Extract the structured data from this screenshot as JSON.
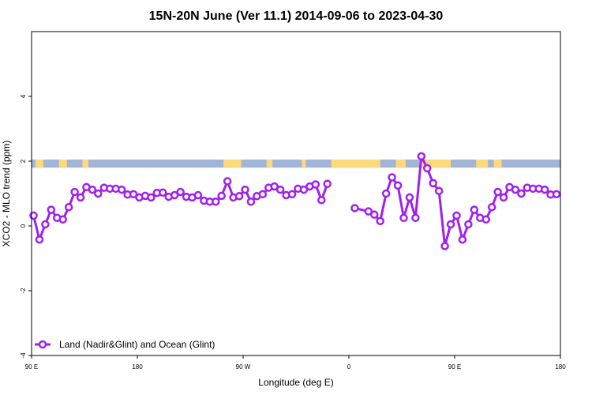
{
  "chart_data": {
    "type": "line",
    "title": "15N-20N June (Ver 11.1)   2014-09-06 to 2023-04-30",
    "xlabel": "Longitude (deg E)",
    "ylabel": "XCO2 - MLO trend (ppm)",
    "xlim": [
      -90,
      180
    ],
    "ylim": [
      -4,
      6
    ],
    "x_ticks": [
      {
        "value": -90,
        "label": "90 E"
      },
      {
        "value": -36,
        "label": "180"
      },
      {
        "value": 18,
        "label": "90 W"
      },
      {
        "value": 72,
        "label": "0"
      },
      {
        "value": 126,
        "label": "90 E"
      },
      {
        "value": 180,
        "label": "180"
      }
    ],
    "y_ticks": [
      -4,
      -2,
      0,
      2,
      4
    ],
    "grid": false,
    "legend": {
      "position": "bottom-left"
    },
    "land_ocean_band": {
      "y_range": [
        1.8,
        2.05
      ],
      "ocean_color": "#a2b5d8",
      "land_color": "#fcd97a"
    },
    "series": [
      {
        "name": "Land (Nadir&Glint) and Ocean (Glint)",
        "color": "#a020f0",
        "x": [
          -89,
          -86,
          -83,
          -80,
          -77,
          -74,
          -71,
          -68,
          -65,
          -62,
          -59,
          -56,
          -53,
          -50,
          -47,
          -44,
          -41,
          -38,
          -35,
          -32,
          -29,
          -26,
          -23,
          -20,
          -17,
          -14,
          -11,
          -8,
          -5,
          -2,
          1,
          4,
          7,
          10,
          13,
          16,
          19,
          22,
          25,
          28,
          31,
          34,
          37,
          40,
          43,
          46,
          49,
          52,
          55,
          58,
          61,
          64,
          67,
          null,
          75,
          82,
          85,
          88,
          91,
          94,
          97,
          100,
          103,
          106,
          109,
          112,
          115,
          118,
          121,
          124,
          127,
          130,
          133,
          136,
          139,
          142,
          145,
          148,
          151,
          154,
          157,
          160,
          163,
          166,
          169,
          172,
          175,
          178
        ],
        "y": [
          0.32,
          -0.42,
          0.05,
          0.5,
          0.25,
          0.2,
          0.58,
          1.05,
          0.88,
          1.2,
          1.12,
          1.0,
          1.18,
          1.15,
          1.15,
          1.12,
          0.97,
          0.98,
          0.88,
          0.93,
          0.88,
          1.02,
          1.03,
          0.9,
          0.95,
          1.05,
          0.9,
          0.88,
          0.95,
          0.78,
          0.75,
          0.75,
          0.93,
          1.38,
          0.88,
          0.92,
          1.12,
          0.75,
          0.92,
          0.98,
          1.18,
          1.22,
          1.12,
          0.95,
          0.98,
          1.15,
          1.12,
          1.22,
          1.28,
          0.8,
          1.3,
          null,
          null,
          null,
          0.55,
          0.45,
          0.35,
          0.15,
          1.0,
          1.5,
          1.25,
          0.25,
          0.88,
          0.25,
          2.15,
          1.78,
          1.32,
          1.08,
          -0.62,
          0.05,
          0.32,
          -0.42,
          0.05,
          0.5,
          0.25,
          0.2,
          0.58,
          1.05,
          0.88,
          1.2,
          1.12,
          1.0,
          1.18,
          1.15,
          1.15,
          1.12,
          0.97,
          0.98
        ]
      }
    ]
  }
}
